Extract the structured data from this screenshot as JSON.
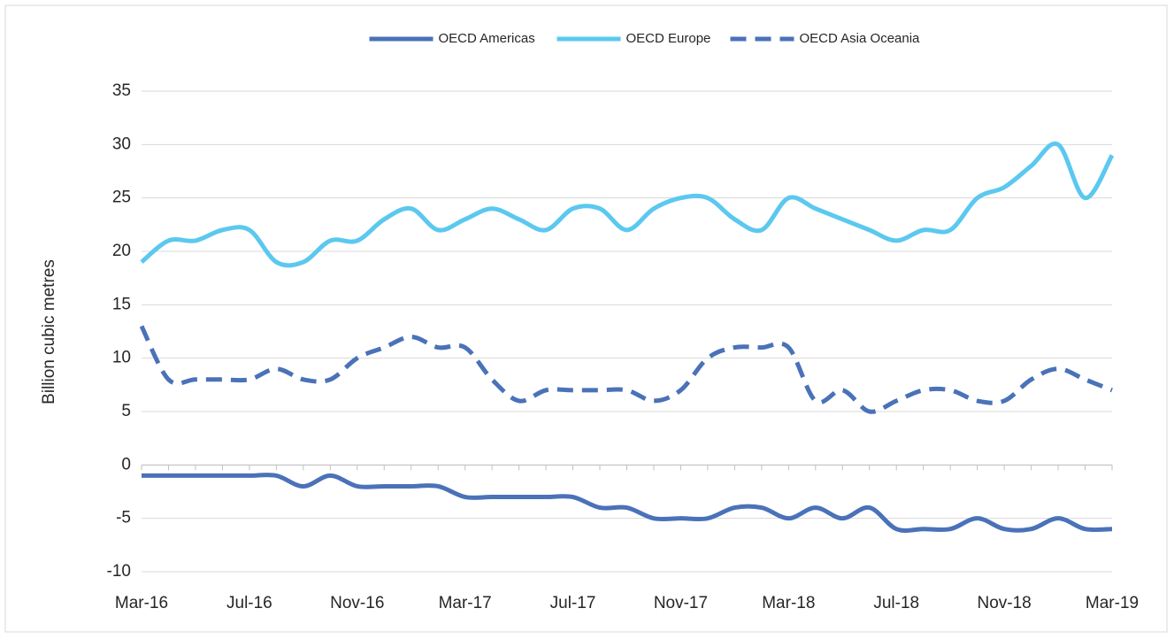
{
  "chart_data": {
    "type": "line",
    "y_label": "Billion cubic metres",
    "categories": [
      "Mar-16",
      null,
      null,
      null,
      "Jul-16",
      null,
      null,
      null,
      "Nov-16",
      null,
      null,
      null,
      "Mar-17",
      null,
      null,
      null,
      "Jul-17",
      null,
      null,
      null,
      "Nov-17",
      null,
      null,
      null,
      "Mar-18",
      null,
      null,
      null,
      "Jul-18",
      null,
      null,
      null,
      "Nov-18",
      null,
      null,
      null,
      "Mar-19"
    ],
    "series": [
      {
        "name": "OECD Americas",
        "color": "#4a72b8",
        "dashed": false,
        "values": [
          -1,
          -1,
          -1,
          -1,
          -1,
          -1,
          -2,
          -1,
          -2,
          -2,
          -2,
          -2,
          -3,
          -3,
          -3,
          -3,
          -3,
          -4,
          -4,
          -5,
          -5,
          -5,
          -4,
          -4,
          -5,
          -4,
          -5,
          -4,
          -6,
          -6,
          -6,
          -5,
          -6,
          -6,
          -5,
          -6,
          -6
        ]
      },
      {
        "name": "OECD Europe",
        "color": "#5bc8ef",
        "dashed": false,
        "values": [
          19,
          21,
          21,
          22,
          22,
          19,
          19,
          21,
          21,
          23,
          24,
          22,
          23,
          24,
          23,
          22,
          24,
          24,
          22,
          24,
          25,
          25,
          23,
          22,
          25,
          24,
          23,
          22,
          21,
          22,
          22,
          25,
          26,
          28,
          30,
          25,
          29
        ]
      },
      {
        "name": "OECD Asia Oceania",
        "color": "#4a72b8",
        "dashed": true,
        "values": [
          13,
          8,
          8,
          8,
          8,
          9,
          8,
          8,
          10,
          11,
          12,
          11,
          11,
          8,
          6,
          7,
          7,
          7,
          7,
          6,
          7,
          10,
          11,
          11,
          11,
          6,
          7,
          5,
          6,
          7,
          7,
          6,
          6,
          8,
          9,
          8,
          7
        ]
      }
    ],
    "ylim": [
      -10,
      35
    ],
    "yticks": [
      -10,
      -5,
      0,
      5,
      10,
      15,
      20,
      25,
      30,
      35
    ],
    "grid": true,
    "legend": "top"
  }
}
